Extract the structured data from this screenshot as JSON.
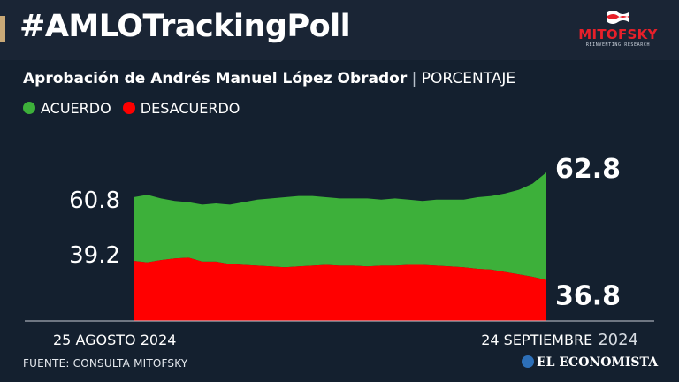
{
  "header": {
    "title": "#AMLOTrackingPoll",
    "logo_text": "MITOFSKY",
    "logo_sub": "REINVENTING RESEARCH"
  },
  "subtitle": {
    "bold": "Aprobación de Andrés Manuel López Obrador",
    "sep": "|",
    "unit": "PORCENTAJE"
  },
  "legend": [
    {
      "label": "ACUERDO",
      "color": "#3db03a"
    },
    {
      "label": "DESACUERDO",
      "color": "#ff0000"
    }
  ],
  "footer": {
    "source": "FUENTE: CONSULTA MITOFSKY",
    "brand": "EL ECONOMISTA"
  },
  "chart_data": {
    "type": "area",
    "x_start_label": "25 AGOSTO 2024",
    "x_end_label_day_month": "24 SEPTIEMBRE",
    "x_end_label_year": "2024",
    "ylim": [
      0,
      100
    ],
    "series": [
      {
        "name": "ACUERDO",
        "color": "#3db03a",
        "start_label": "60.8",
        "end_label": "62.8",
        "values": [
          60.8,
          61.0,
          60.7,
          60.5,
          60.4,
          60.2,
          60.3,
          60.2,
          60.4,
          60.6,
          60.7,
          60.8,
          60.9,
          60.9,
          60.8,
          60.7,
          60.7,
          60.7,
          60.6,
          60.7,
          60.6,
          60.5,
          60.6,
          60.6,
          60.6,
          60.8,
          60.9,
          61.1,
          61.4,
          61.9,
          62.8
        ]
      },
      {
        "name": "DESACUERDO",
        "color": "#ff0000",
        "start_label": "39.2",
        "end_label": "36.8",
        "values": [
          39.2,
          39.0,
          39.3,
          39.5,
          39.6,
          39.1,
          39.1,
          38.8,
          38.7,
          38.6,
          38.5,
          38.4,
          38.5,
          38.6,
          38.7,
          38.6,
          38.6,
          38.5,
          38.6,
          38.6,
          38.7,
          38.7,
          38.6,
          38.5,
          38.4,
          38.2,
          38.1,
          37.8,
          37.5,
          37.2,
          36.8
        ]
      }
    ]
  }
}
